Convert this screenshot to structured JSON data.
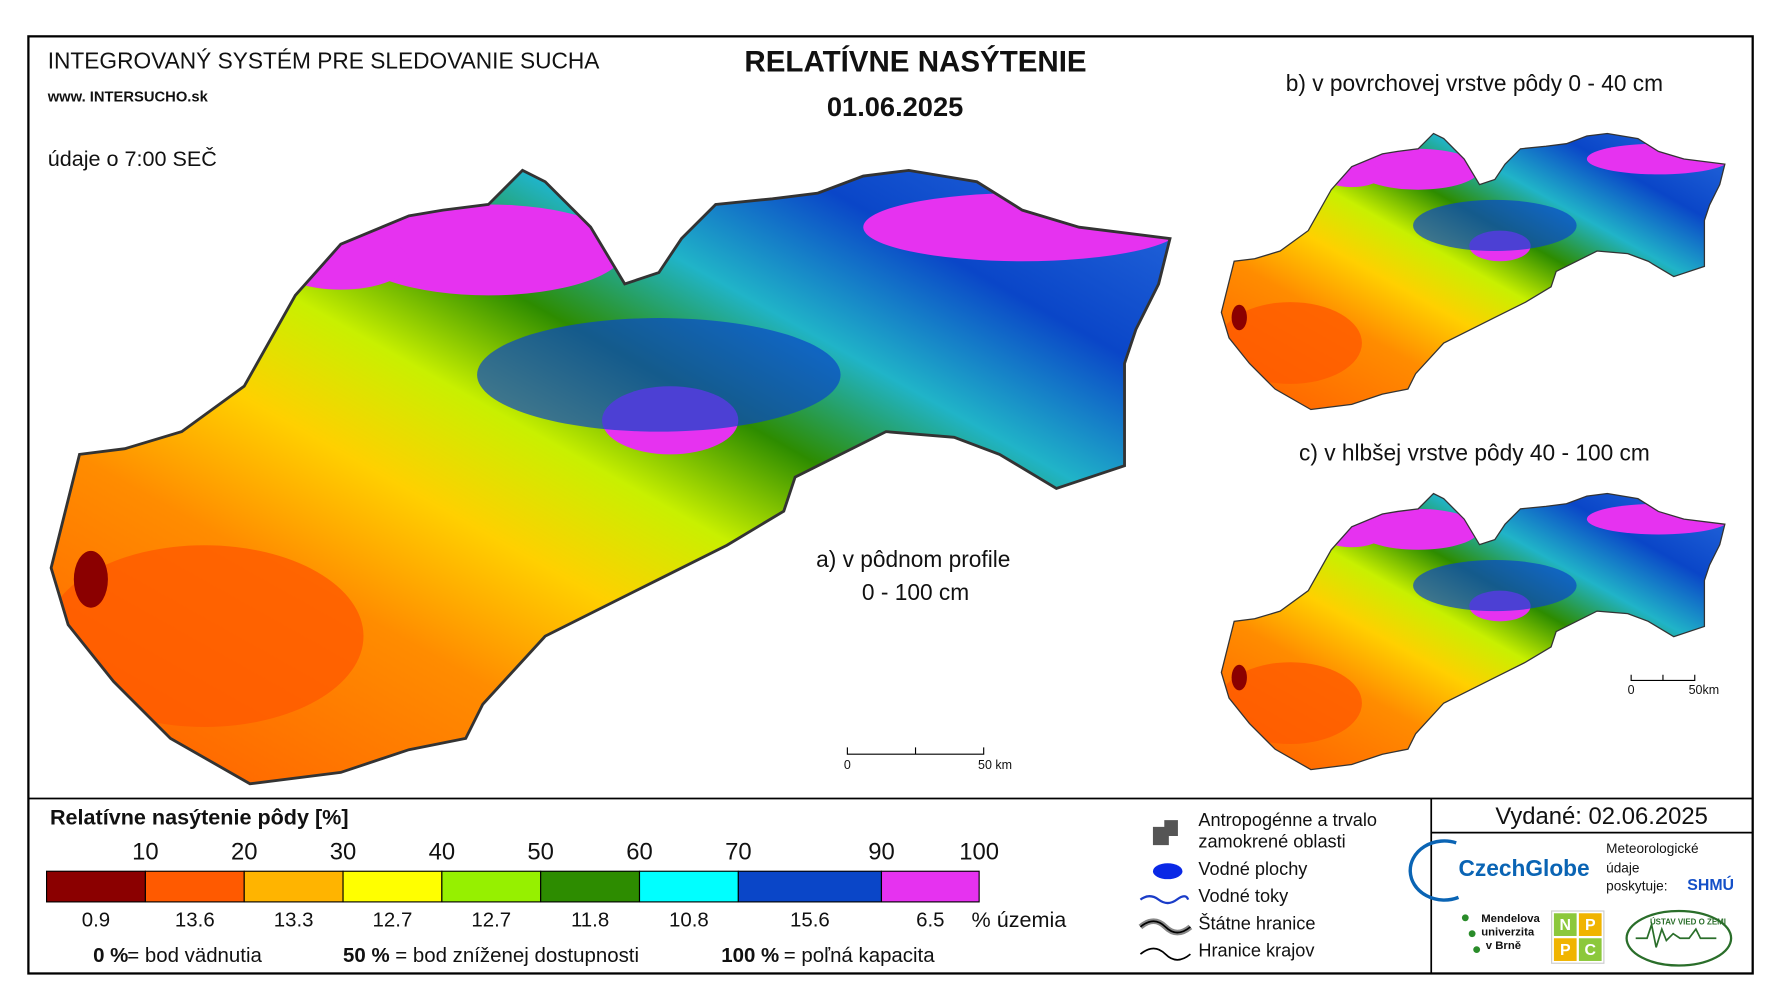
{
  "header": {
    "system": "INTEGROVANÝ SYSTÉM PRE SLEDOVANIE SUCHA",
    "website": "www. INTERSUCHO.sk",
    "title": "RELATÍVNE NASÝTENIE",
    "date": "01.06.2025",
    "data_time": "údaje o 7:00 SEČ"
  },
  "maps": {
    "a": {
      "label": "a) v pôdnom profile",
      "depth": "0 - 100 cm",
      "scale_start": "0",
      "scale_end": "50 km"
    },
    "b": {
      "label": "b) v povrchovej vrstve pôdy 0 - 40 cm"
    },
    "c": {
      "label": "c) v hlbšej vrstve pôdy 40 - 100 cm",
      "scale_start": "0",
      "scale_end": "50km"
    }
  },
  "legend": {
    "title": "Relatívne nasýtenie pôdy [%]",
    "ticks": [
      10,
      20,
      30,
      40,
      50,
      60,
      70,
      90,
      100
    ],
    "classes": [
      {
        "color": "#8b0000",
        "share": 0.9
      },
      {
        "color": "#ff5a00",
        "share": 13.6
      },
      {
        "color": "#ffb400",
        "share": 13.3
      },
      {
        "color": "#ffff00",
        "share": 12.7
      },
      {
        "color": "#96f000",
        "share": 12.7
      },
      {
        "color": "#2d8c00",
        "share": 11.8
      },
      {
        "color": "#00ffff",
        "share": 10.8
      },
      {
        "color": "#0a46c8",
        "share": 15.6
      },
      {
        "color": "#e632f0",
        "share": 6.5
      }
    ],
    "share_unit": "% územia",
    "notes": [
      {
        "key": "0 %",
        "text": "= bod vädnutia"
      },
      {
        "key": "50 %",
        "text": "= bod zníženej dostupnosti"
      },
      {
        "key": "100 %",
        "text": "= poľná kapacita"
      }
    ]
  },
  "symbols": [
    "Antropogénne a trvalo",
    "zamokrené oblasti",
    "Vodné plochy",
    "Vodné toky",
    "Štátne hranice",
    "Hranice krajov"
  ],
  "issued": "Vydané: 02.06.2025",
  "logos": {
    "czechglobe": "CzechGlobe",
    "meteo": [
      "Meteorologické",
      "údaje",
      "poskytuje:"
    ],
    "shmu": "SHMÚ",
    "mendelu": [
      "Mendelova",
      "univerzita",
      "v Brně"
    ],
    "npcc": [
      "N",
      "P",
      "P",
      "C"
    ],
    "uvz": "ÚSTAV VIED O ZEMI"
  }
}
